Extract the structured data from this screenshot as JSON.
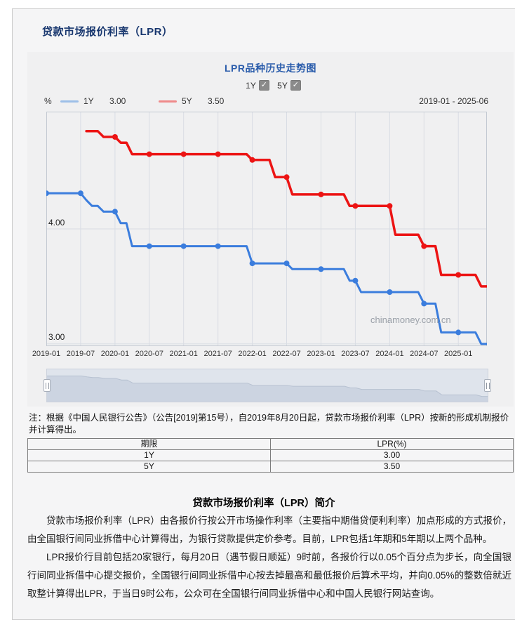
{
  "page": {
    "title": "贷款市场报价利率（LPR）"
  },
  "icons": {
    "check": "✓"
  },
  "chart": {
    "title": "LPR品种历史走势图",
    "toggles": [
      {
        "label": "1Y",
        "checked": true
      },
      {
        "label": "5Y",
        "checked": true
      }
    ],
    "unit": "%",
    "legend": [
      {
        "label": "1Y",
        "value": "3.00",
        "swatch_color": "#9dbfe8"
      },
      {
        "label": "5Y",
        "value": "3.50",
        "swatch_color": "#ef8a8a"
      }
    ],
    "date_range": "2019-01 - 2025-06",
    "watermark": "chinamoney.com.cn"
  },
  "chart_data": {
    "type": "line",
    "title": "LPR品种历史走势图",
    "x_start": "2019-01",
    "x_end": "2025-06",
    "x_tick_labels": [
      "2019-01",
      "2019-07",
      "2020-01",
      "2020-07",
      "2021-01",
      "2021-07",
      "2022-01",
      "2022-07",
      "2023-01",
      "2023-07",
      "2024-01",
      "2024-07",
      "2025-01"
    ],
    "y_tick_labels": [
      "4.00",
      "3.00"
    ],
    "ylim": [
      2.98,
      5.02
    ],
    "grid": "vertical",
    "legend_position": "top",
    "marker_interval_months": 6,
    "series": [
      {
        "name": "1Y",
        "color": "#3b7ddd",
        "width": 3,
        "start_month_index": 0,
        "values": [
          4.31,
          4.31,
          4.31,
          4.31,
          4.31,
          4.31,
          4.31,
          4.25,
          4.2,
          4.2,
          4.15,
          4.15,
          4.15,
          4.05,
          4.05,
          3.85,
          3.85,
          3.85,
          3.85,
          3.85,
          3.85,
          3.85,
          3.85,
          3.85,
          3.85,
          3.85,
          3.85,
          3.85,
          3.85,
          3.85,
          3.85,
          3.85,
          3.85,
          3.85,
          3.85,
          3.85,
          3.7,
          3.7,
          3.7,
          3.7,
          3.7,
          3.7,
          3.7,
          3.65,
          3.65,
          3.65,
          3.65,
          3.65,
          3.65,
          3.65,
          3.65,
          3.65,
          3.65,
          3.55,
          3.55,
          3.45,
          3.45,
          3.45,
          3.45,
          3.45,
          3.45,
          3.45,
          3.45,
          3.45,
          3.45,
          3.45,
          3.35,
          3.35,
          3.35,
          3.1,
          3.1,
          3.1,
          3.1,
          3.1,
          3.1,
          3.1,
          3.0,
          3.0
        ]
      },
      {
        "name": "5Y",
        "color": "#ec1414",
        "width": 3.5,
        "start_month_index": 7,
        "values": [
          4.85,
          4.85,
          4.85,
          4.8,
          4.8,
          4.8,
          4.75,
          4.75,
          4.65,
          4.65,
          4.65,
          4.65,
          4.65,
          4.65,
          4.65,
          4.65,
          4.65,
          4.65,
          4.65,
          4.65,
          4.65,
          4.65,
          4.65,
          4.65,
          4.65,
          4.65,
          4.65,
          4.65,
          4.65,
          4.6,
          4.6,
          4.6,
          4.6,
          4.45,
          4.45,
          4.45,
          4.3,
          4.3,
          4.3,
          4.3,
          4.3,
          4.3,
          4.3,
          4.3,
          4.3,
          4.3,
          4.2,
          4.2,
          4.2,
          4.2,
          4.2,
          4.2,
          4.2,
          4.2,
          3.95,
          3.95,
          3.95,
          3.95,
          3.95,
          3.85,
          3.85,
          3.85,
          3.6,
          3.6,
          3.6,
          3.6,
          3.6,
          3.6,
          3.6,
          3.5,
          3.5
        ]
      }
    ]
  },
  "note": "注：根据《中国人民银行公告》（公告[2019]第15号），自2019年8月20日起，贷款市场报价利率（LPR）按新的形成机制报价并计算得出。",
  "rate_table": {
    "headers": [
      "期限",
      "LPR(%)"
    ],
    "rows": [
      [
        "1Y",
        "3.00"
      ],
      [
        "5Y",
        "3.50"
      ]
    ]
  },
  "intro": {
    "heading": "贷款市场报价利率（LPR）简介",
    "paragraphs": [
      "贷款市场报价利率（LPR）由各报价行按公开市场操作利率（主要指中期借贷便利利率）加点形成的方式报价，由全国银行间同业拆借中心计算得出，为银行贷款提供定价参考。目前，LPR包括1年期和5年期以上两个品种。",
      "LPR报价行目前包括20家银行，每月20日（遇节假日顺延）9时前，各报价行以0.05个百分点为步长，向全国银行间同业拆借中心提交报价，全国银行间同业拆借中心按去掉最高和最低报价后算术平均，并向0.05%的整数倍就近取整计算得出LPR，于当日9时公布，公众可在全国银行间同业拆借中心和中国人民银行网站查询。"
    ]
  }
}
